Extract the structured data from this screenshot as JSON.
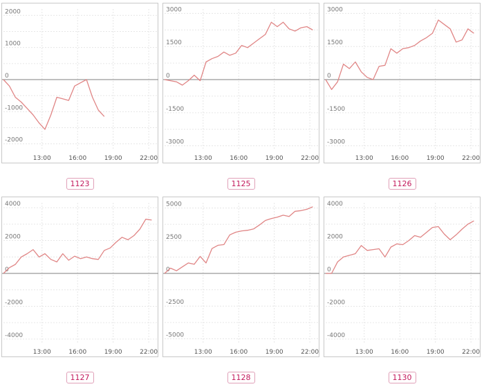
{
  "chart_data": [
    {
      "type": "line",
      "title": "1123",
      "ylim": [
        -2200,
        2200
      ],
      "yticks": [
        2000,
        1000,
        0,
        -1000,
        -2000
      ],
      "xticks": [
        "13:00",
        "16:00",
        "19:00",
        "22:00"
      ],
      "xlim": [
        0,
        26
      ],
      "series": [
        {
          "x": [
            0,
            1,
            2,
            3,
            4,
            5,
            6,
            7,
            8,
            9,
            10,
            11,
            12,
            13,
            14,
            15,
            16,
            17
          ],
          "values": [
            0,
            -200,
            -550,
            -700,
            -900,
            -1100,
            -1350,
            -1550,
            -1100,
            -550,
            -600,
            -650,
            -200,
            -100,
            0,
            -550,
            -950,
            -1150
          ]
        }
      ]
    },
    {
      "type": "line",
      "title": "1125",
      "ylim": [
        -3200,
        3200
      ],
      "yticks": [
        3000,
        1500,
        0,
        -1500,
        -3000
      ],
      "xticks": [
        "13:00",
        "16:00",
        "19:00",
        "22:00"
      ],
      "xlim": [
        0,
        26
      ],
      "series": [
        {
          "x": [
            0,
            1,
            2,
            3,
            4,
            5,
            6,
            7,
            8,
            9,
            10,
            11,
            12,
            13,
            14,
            15,
            16,
            17,
            18,
            19,
            20,
            21,
            22,
            23,
            24,
            25
          ],
          "values": [
            0,
            -50,
            -100,
            -250,
            -50,
            200,
            -50,
            800,
            950,
            1050,
            1250,
            1100,
            1200,
            1550,
            1450,
            1650,
            1850,
            2050,
            2600,
            2400,
            2600,
            2300,
            2200,
            2350,
            2400,
            2250
          ]
        }
      ]
    },
    {
      "type": "line",
      "title": "1126",
      "ylim": [
        -3200,
        3200
      ],
      "yticks": [
        3000,
        1500,
        0,
        -1500,
        -3000
      ],
      "xticks": [
        "13:00",
        "16:00",
        "19:00",
        "22:00"
      ],
      "xlim": [
        0,
        26
      ],
      "series": [
        {
          "x": [
            0,
            1,
            2,
            3,
            4,
            5,
            6,
            7,
            8,
            9,
            10,
            11,
            12,
            13,
            14,
            15,
            16,
            17,
            18,
            19,
            20,
            21,
            22,
            23,
            24,
            25
          ],
          "values": [
            0,
            -450,
            -100,
            700,
            500,
            800,
            350,
            100,
            0,
            600,
            650,
            1400,
            1200,
            1400,
            1450,
            1550,
            1750,
            1900,
            2100,
            2700,
            2500,
            2300,
            1700,
            1800,
            2300,
            2100
          ]
        }
      ]
    },
    {
      "type": "line",
      "title": "1127",
      "ylim": [
        -4300,
        4300
      ],
      "yticks": [
        4000,
        2000,
        0,
        -2000,
        -4000
      ],
      "xticks": [
        "13:00",
        "16:00",
        "19:00",
        "22:00"
      ],
      "xlim": [
        0,
        26
      ],
      "series": [
        {
          "x": [
            0,
            1,
            2,
            3,
            4,
            5,
            6,
            7,
            8,
            9,
            10,
            11,
            12,
            13,
            14,
            15,
            16,
            17,
            18,
            19,
            20,
            21,
            22,
            23,
            24,
            25
          ],
          "values": [
            0,
            350,
            550,
            1000,
            1200,
            1450,
            1000,
            1200,
            850,
            700,
            1200,
            800,
            1050,
            900,
            1000,
            900,
            850,
            1400,
            1550,
            1900,
            2200,
            2050,
            2300,
            2700,
            3300,
            3250
          ]
        }
      ]
    },
    {
      "type": "line",
      "title": "1128",
      "ylim": [
        -5400,
        5400
      ],
      "yticks": [
        5000,
        2500,
        0,
        -2500,
        -5000
      ],
      "xticks": [
        "13:00",
        "16:00",
        "19:00",
        "22:00"
      ],
      "xlim": [
        0,
        26
      ],
      "series": [
        {
          "x": [
            0,
            1,
            2,
            3,
            4,
            5,
            6,
            7,
            8,
            9,
            10,
            11,
            12,
            13,
            14,
            15,
            16,
            17,
            18,
            19,
            20,
            21,
            22,
            23,
            24,
            25
          ],
          "values": [
            0,
            400,
            200,
            500,
            800,
            700,
            1300,
            800,
            1900,
            2150,
            2200,
            2950,
            3150,
            3250,
            3300,
            3400,
            3700,
            4050,
            4200,
            4300,
            4450,
            4350,
            4750,
            4800,
            4900,
            5100
          ]
        }
      ]
    },
    {
      "type": "line",
      "title": "1130",
      "ylim": [
        -4300,
        4300
      ],
      "yticks": [
        4000,
        2000,
        0,
        -2000,
        -4000
      ],
      "xticks": [
        "13:00",
        "16:00",
        "19:00",
        "22:00"
      ],
      "xlim": [
        0,
        26
      ],
      "series": [
        {
          "x": [
            0,
            1,
            2,
            3,
            4,
            5,
            6,
            7,
            8,
            9,
            10,
            11,
            12,
            13,
            14,
            15,
            16,
            17,
            18,
            19,
            20,
            21,
            22,
            23,
            24,
            25
          ],
          "values": [
            0,
            0,
            700,
            1000,
            1100,
            1200,
            1700,
            1400,
            1450,
            1500,
            1000,
            1600,
            1800,
            1750,
            2000,
            2300,
            2200,
            2500,
            2800,
            2850,
            2400,
            2050,
            2350,
            2700,
            3000,
            3200
          ]
        }
      ]
    }
  ]
}
